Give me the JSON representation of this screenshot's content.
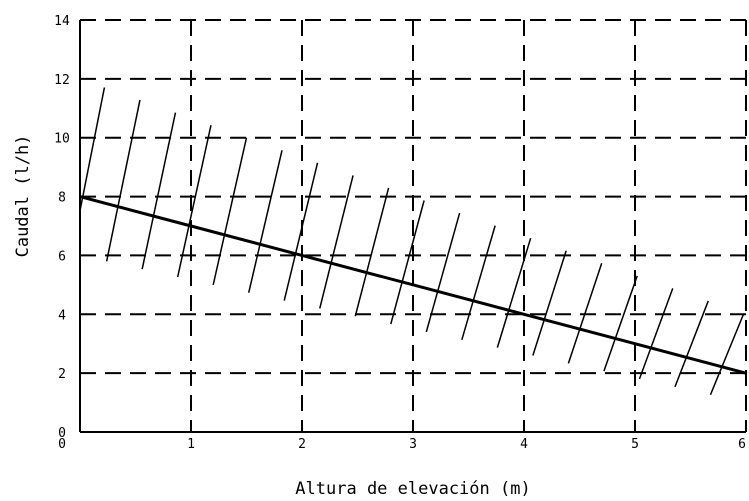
{
  "chart_data": {
    "type": "line",
    "title": "",
    "xlabel": "Altura de elevación (m)",
    "ylabel": "Caudal (l/h)",
    "xlim": [
      0,
      6
    ],
    "ylim": [
      0,
      14
    ],
    "x_ticks": [
      "0",
      "1",
      "2",
      "3",
      "4",
      "5",
      "6"
    ],
    "y_ticks": [
      "0",
      "2",
      "4",
      "6",
      "8",
      "10",
      "12",
      "14"
    ],
    "grid": "dashed",
    "legend": "none",
    "series": [
      {
        "x": [
          0,
          1,
          2,
          3,
          4,
          5,
          6
        ],
        "values": [
          8,
          7,
          6,
          5,
          4,
          3,
          2
        ],
        "color": "#000000"
      }
    ],
    "band": {
      "style": "hatched",
      "x": [
        0,
        6
      ],
      "lower": [
        6,
        1
      ],
      "upper": [
        12,
        4
      ]
    }
  }
}
